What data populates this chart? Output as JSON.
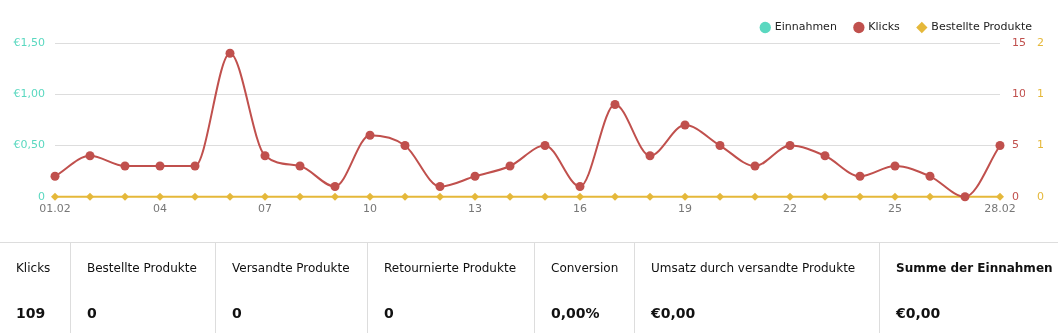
{
  "chart_data": [
    {
      "type": "line",
      "categories": [
        "01.02",
        null,
        null,
        "04",
        null,
        null,
        "07",
        null,
        null,
        "10",
        null,
        null,
        "13",
        null,
        null,
        "16",
        null,
        null,
        "19",
        null,
        null,
        "22",
        null,
        null,
        "25",
        null,
        null,
        "28.02"
      ],
      "series": [
        {
          "name": "Einnahmen",
          "color": "#5ad8c0",
          "axis": "y",
          "marker": "circle",
          "values": [
            null,
            null,
            null,
            null,
            null,
            null,
            null,
            null,
            null,
            null,
            null,
            null,
            null,
            null,
            null,
            null,
            null,
            null,
            null,
            null,
            null,
            null,
            null,
            null,
            null,
            null,
            null,
            null
          ]
        },
        {
          "name": "Klicks",
          "color": "#c0504d",
          "axis": "y2",
          "marker": "circle",
          "values": [
            2,
            4,
            3,
            3,
            3,
            14,
            4,
            3,
            1,
            6,
            5,
            1,
            2,
            3,
            5,
            1,
            9,
            4,
            7,
            5,
            3,
            5,
            4,
            2,
            3,
            2,
            0,
            5
          ]
        },
        {
          "name": "Bestellte Produkte",
          "color": "#e5b83a",
          "axis": "y3",
          "marker": "diamond",
          "values": [
            0,
            0,
            0,
            0,
            0,
            0,
            0,
            0,
            0,
            0,
            0,
            0,
            0,
            0,
            0,
            0,
            0,
            0,
            0,
            0,
            0,
            0,
            0,
            0,
            0,
            0,
            0,
            0
          ]
        }
      ],
      "ylim": [
        0,
        1.5
      ],
      "yticks": [
        {
          "value": 0,
          "label": "0"
        },
        {
          "value": 0.5,
          "label": "€0,50"
        },
        {
          "value": 1,
          "label": "€1,00"
        },
        {
          "value": 1.5,
          "label": "€1,50"
        }
      ],
      "y2lim": [
        0,
        15
      ],
      "y2ticks": [
        0,
        5,
        10,
        15
      ],
      "y3lim": [
        0,
        2
      ],
      "y3ticks": [
        0,
        {
          "value": 0.667,
          "label": "1"
        },
        {
          "value": 1.333,
          "label": "1"
        },
        2
      ],
      "grid": "y",
      "legend": "top right"
    },
    {
      "type": "other",
      "annotations": [
        "Klicks",
        "Bestellte Produkte",
        "Versandte Produkte",
        "Retournierte Produkte",
        "Conversion",
        "Umsatz durch versandte Produkte",
        "Summe der Einnahmen",
        "109",
        "0",
        "0",
        "0",
        "0,00%",
        "€0,00",
        "€0,00"
      ]
    }
  ]
}
